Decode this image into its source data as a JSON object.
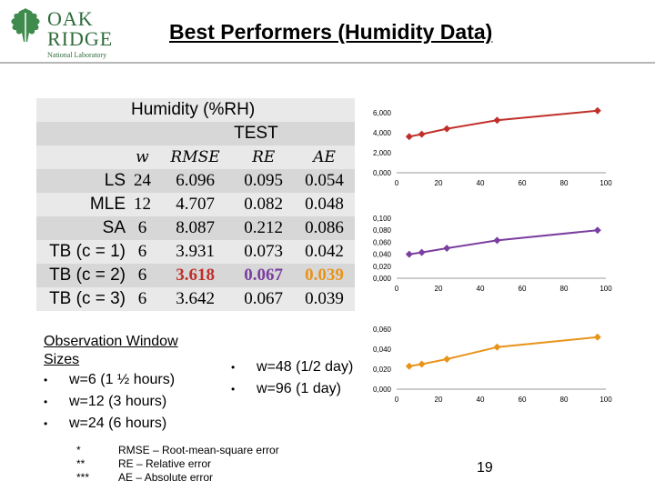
{
  "logo": {
    "line1": "OAK",
    "line2": "RIDGE",
    "line3": "National Laboratory"
  },
  "title": "Best Performers (Humidity Data)",
  "table": {
    "heading": "Humidity (%RH)",
    "subheading": "TEST",
    "columns": [
      "w",
      "RMSE",
      "RE",
      "AE"
    ],
    "rows": [
      {
        "name": "LS",
        "w": "24",
        "rmse": "6.096",
        "re": "0.095",
        "ae": "0.054"
      },
      {
        "name": "MLE",
        "w": "12",
        "rmse": "4.707",
        "re": "0.082",
        "ae": "0.048"
      },
      {
        "name": "SA",
        "w": "6",
        "rmse": "8.087",
        "re": "0.212",
        "ae": "0.086"
      },
      {
        "name": "TB (c = 1)",
        "w": "6",
        "rmse": "3.931",
        "re": "0.073",
        "ae": "0.042"
      },
      {
        "name": "TB (c = 2)",
        "w": "6",
        "rmse": "3.618",
        "re": "0.067",
        "ae": "0.039"
      },
      {
        "name": "TB (c = 3)",
        "w": "6",
        "rmse": "3.642",
        "re": "0.067",
        "ae": "0.039"
      }
    ],
    "highlight_colors": {
      "rmse": "#c0302b",
      "re": "#7a3fa0",
      "ae": "#e8941a"
    }
  },
  "notes": {
    "title_line1": "Observation Window",
    "title_line2": "Sizes",
    "left_items": [
      "w=6 (1 ½ hours)",
      "w=12 (3 hours)",
      "w=24 (6 hours)"
    ],
    "right_items": [
      "w=48 (1/2 day)",
      "w=96 (1 day)"
    ],
    "bullet": "•"
  },
  "footnotes": [
    {
      "mark": "*",
      "text": "RMSE – Root-mean-square error"
    },
    {
      "mark": "**",
      "text": "RE – Relative error"
    },
    {
      "mark": "***",
      "text": "AE – Absolute error"
    }
  ],
  "page_number": "19",
  "chart_data": [
    {
      "type": "line",
      "color": "#c0302b",
      "marker": "diamond",
      "x": [
        6,
        12,
        24,
        48,
        96
      ],
      "y": [
        3.618,
        3.85,
        4.4,
        5.25,
        6.2
      ],
      "ylim": [
        0,
        6
      ],
      "yticks": [
        "0,000",
        "2,000",
        "4,000",
        "6,000"
      ],
      "ytick_values": [
        0,
        2,
        4,
        6
      ],
      "xlim": [
        0,
        100
      ],
      "xticks": [
        "0",
        "20",
        "40",
        "60",
        "80",
        "100"
      ],
      "xtick_values": [
        0,
        20,
        40,
        60,
        80,
        100
      ],
      "grid": false
    },
    {
      "type": "line",
      "color": "#7a3fa0",
      "marker": "diamond",
      "x": [
        6,
        12,
        24,
        48,
        96
      ],
      "y": [
        0.04,
        0.043,
        0.05,
        0.063,
        0.08
      ],
      "ylim": [
        0,
        0.1
      ],
      "yticks": [
        "0,000",
        "0,020",
        "0,040",
        "0,060",
        "0,080",
        "0,100"
      ],
      "ytick_values": [
        0,
        0.02,
        0.04,
        0.06,
        0.08,
        0.1
      ],
      "xlim": [
        0,
        100
      ],
      "xticks": [
        "0",
        "20",
        "40",
        "60",
        "80",
        "100"
      ],
      "xtick_values": [
        0,
        20,
        40,
        60,
        80,
        100
      ],
      "grid": false
    },
    {
      "type": "line",
      "color": "#e8941a",
      "marker": "diamond",
      "x": [
        6,
        12,
        24,
        48,
        96
      ],
      "y": [
        0.023,
        0.025,
        0.03,
        0.042,
        0.052
      ],
      "ylim": [
        0,
        0.06
      ],
      "yticks": [
        "0,000",
        "0,020",
        "0,040",
        "0,060"
      ],
      "ytick_values": [
        0,
        0.02,
        0.04,
        0.06
      ],
      "xlim": [
        0,
        100
      ],
      "xticks": [
        "0",
        "20",
        "40",
        "60",
        "80",
        "100"
      ],
      "xtick_values": [
        0,
        20,
        40,
        60,
        80,
        100
      ],
      "grid": false
    }
  ]
}
